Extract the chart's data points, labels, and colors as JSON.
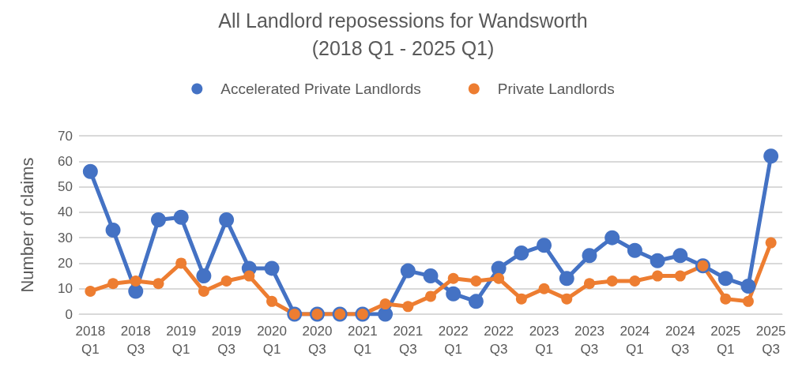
{
  "chart_data": {
    "type": "line",
    "title": "All Landlord reposessions for Wandsworth",
    "subtitle": "(2018 Q1 - 2025 Q1)",
    "ylabel": "Number of claims",
    "categories": [
      "2018\nQ1",
      null,
      "2018\nQ3",
      null,
      "2019\nQ1",
      null,
      "2019\nQ3",
      null,
      "2020\nQ1",
      null,
      "2020\nQ3",
      null,
      "2021\nQ1",
      null,
      "2021\nQ3",
      null,
      "2022\nQ1",
      null,
      "2022\nQ3",
      null,
      "2023\nQ1",
      null,
      "2023\nQ3",
      null,
      "2024\nQ1",
      null,
      "2024\nQ3",
      null,
      "2025\nQ1",
      null,
      "2025\nQ3"
    ],
    "series": [
      {
        "name": "Accelerated Private Landlords",
        "color": "#4472c4",
        "values": [
          56,
          33,
          9,
          37,
          38,
          15,
          37,
          18,
          18,
          0,
          0,
          0,
          0,
          0,
          17,
          15,
          8,
          5,
          18,
          24,
          27,
          14,
          23,
          30,
          25,
          21,
          23,
          19,
          14,
          11,
          62
        ]
      },
      {
        "name": "Private Landlords",
        "color": "#ed7d31",
        "values": [
          9,
          12,
          13,
          12,
          20,
          9,
          13,
          15,
          5,
          0,
          0,
          0,
          0,
          4,
          3,
          7,
          14,
          13,
          14,
          6,
          10,
          6,
          12,
          13,
          13,
          15,
          15,
          19,
          6,
          5,
          28
        ]
      }
    ],
    "ylim": [
      0,
      70
    ],
    "yticks": [
      0,
      10,
      20,
      30,
      40,
      50,
      60,
      70
    ],
    "grid": "y",
    "legend": "top",
    "marker": "circle",
    "line_style": "solid"
  }
}
